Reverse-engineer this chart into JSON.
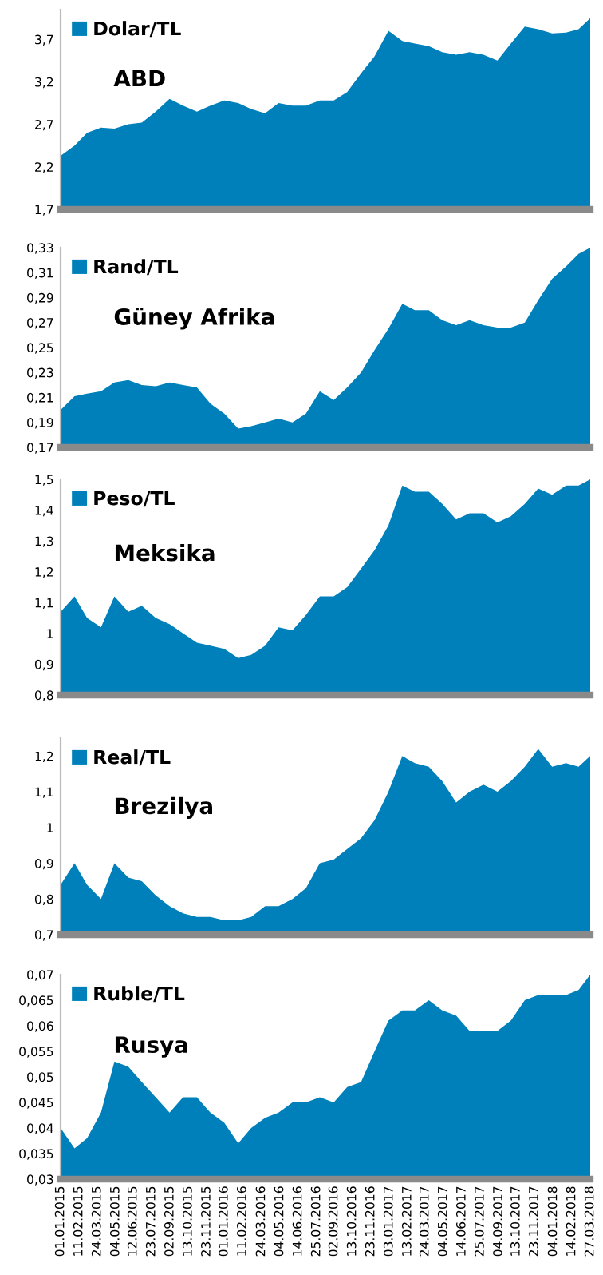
{
  "chart_data": [
    {
      "type": "area",
      "title": "ABD",
      "x": [
        "2015-01-01",
        "2015-02-01",
        "2015-03-01",
        "2015-04-01",
        "2015-05-01",
        "2015-06-01",
        "2015-07-01",
        "2015-08-01",
        "2015-09-01",
        "2015-10-01",
        "2015-11-01",
        "2015-12-01",
        "2016-01-01",
        "2016-02-01",
        "2016-03-01",
        "2016-04-01",
        "2016-05-01",
        "2016-06-01",
        "2016-07-01",
        "2016-08-01",
        "2016-09-01",
        "2016-10-01",
        "2016-11-01",
        "2016-12-01",
        "2017-01-01",
        "2017-02-01",
        "2017-03-01",
        "2017-04-01",
        "2017-05-01",
        "2017-06-01",
        "2017-07-01",
        "2017-08-01",
        "2017-09-01",
        "2017-10-01",
        "2017-11-01",
        "2017-12-01",
        "2018-01-01",
        "2018-02-01",
        "2018-03-01",
        "2018-03-27"
      ],
      "series": [
        {
          "name": "Dolar/TL",
          "color": "#0080bb",
          "values": [
            2.33,
            2.45,
            2.6,
            2.66,
            2.65,
            2.7,
            2.72,
            2.85,
            3.0,
            2.92,
            2.85,
            2.92,
            2.98,
            2.95,
            2.88,
            2.83,
            2.95,
            2.92,
            2.92,
            2.98,
            2.98,
            3.08,
            3.3,
            3.5,
            3.8,
            3.68,
            3.65,
            3.62,
            3.55,
            3.52,
            3.55,
            3.52,
            3.45,
            3.65,
            3.85,
            3.82,
            3.77,
            3.78,
            3.82,
            3.95
          ]
        }
      ],
      "xlim": [
        "2015-01-01",
        "2018-03-27"
      ],
      "ylim": [
        1.7,
        4.05
      ],
      "yticks": [
        {
          "value": 1.7,
          "label": "1,7"
        },
        {
          "value": 2.2,
          "label": "2,2"
        },
        {
          "value": 2.7,
          "label": "2,7"
        },
        {
          "value": 3.2,
          "label": "3,2"
        },
        {
          "value": 3.7,
          "label": "3,7"
        }
      ],
      "tick_labels": "y",
      "legend": "top left",
      "grid": false
    },
    {
      "type": "area",
      "title": "Güney Afrika",
      "x": [
        "2015-01-01",
        "2015-02-01",
        "2015-03-01",
        "2015-04-01",
        "2015-05-01",
        "2015-06-01",
        "2015-07-01",
        "2015-08-01",
        "2015-09-01",
        "2015-10-01",
        "2015-11-01",
        "2015-12-01",
        "2016-01-01",
        "2016-02-01",
        "2016-03-01",
        "2016-04-01",
        "2016-05-01",
        "2016-06-01",
        "2016-07-01",
        "2016-08-01",
        "2016-09-01",
        "2016-10-01",
        "2016-11-01",
        "2016-12-01",
        "2017-01-01",
        "2017-02-01",
        "2017-03-01",
        "2017-04-01",
        "2017-05-01",
        "2017-06-01",
        "2017-07-01",
        "2017-08-01",
        "2017-09-01",
        "2017-10-01",
        "2017-11-01",
        "2017-12-01",
        "2018-01-01",
        "2018-02-01",
        "2018-03-01",
        "2018-03-27"
      ],
      "series": [
        {
          "name": "Rand/TL",
          "color": "#0080bb",
          "values": [
            0.2,
            0.211,
            0.213,
            0.215,
            0.222,
            0.224,
            0.22,
            0.219,
            0.222,
            0.22,
            0.218,
            0.205,
            0.197,
            0.185,
            0.187,
            0.19,
            0.193,
            0.19,
            0.197,
            0.215,
            0.208,
            0.218,
            0.23,
            0.248,
            0.265,
            0.285,
            0.28,
            0.28,
            0.272,
            0.268,
            0.272,
            0.268,
            0.266,
            0.266,
            0.27,
            0.288,
            0.305,
            0.315,
            0.325,
            0.33
          ]
        }
      ],
      "xlim": [
        "2015-01-01",
        "2018-03-27"
      ],
      "ylim": [
        0.17,
        0.33
      ],
      "yticks": [
        {
          "value": 0.17,
          "label": "0,17"
        },
        {
          "value": 0.19,
          "label": "0,19"
        },
        {
          "value": 0.21,
          "label": "0,21"
        },
        {
          "value": 0.23,
          "label": "0,23"
        },
        {
          "value": 0.25,
          "label": "0,25"
        },
        {
          "value": 0.27,
          "label": "0,27"
        },
        {
          "value": 0.29,
          "label": "0,29"
        },
        {
          "value": 0.31,
          "label": "0,31"
        },
        {
          "value": 0.33,
          "label": "0,33"
        }
      ],
      "tick_labels": "y",
      "legend": "top left",
      "grid": false
    },
    {
      "type": "area",
      "title": "Meksika",
      "x": [
        "2015-01-01",
        "2015-02-01",
        "2015-03-01",
        "2015-04-01",
        "2015-05-01",
        "2015-06-01",
        "2015-07-01",
        "2015-08-01",
        "2015-09-01",
        "2015-10-01",
        "2015-11-01",
        "2015-12-01",
        "2016-01-01",
        "2016-02-01",
        "2016-03-01",
        "2016-04-01",
        "2016-05-01",
        "2016-06-01",
        "2016-07-01",
        "2016-08-01",
        "2016-09-01",
        "2016-10-01",
        "2016-11-01",
        "2016-12-01",
        "2017-01-01",
        "2017-02-01",
        "2017-03-01",
        "2017-04-01",
        "2017-05-01",
        "2017-06-01",
        "2017-07-01",
        "2017-08-01",
        "2017-09-01",
        "2017-10-01",
        "2017-11-01",
        "2017-12-01",
        "2018-01-01",
        "2018-02-01",
        "2018-03-01",
        "2018-03-27"
      ],
      "series": [
        {
          "name": "Peso/TL",
          "color": "#0080bb",
          "values": [
            1.07,
            1.12,
            1.05,
            1.02,
            1.12,
            1.07,
            1.09,
            1.05,
            1.03,
            1.0,
            0.97,
            0.96,
            0.95,
            0.92,
            0.93,
            0.96,
            1.02,
            1.01,
            1.06,
            1.12,
            1.12,
            1.15,
            1.21,
            1.27,
            1.35,
            1.48,
            1.46,
            1.46,
            1.42,
            1.37,
            1.39,
            1.39,
            1.36,
            1.38,
            1.42,
            1.47,
            1.45,
            1.48,
            1.48,
            1.5
          ]
        }
      ],
      "xlim": [
        "2015-01-01",
        "2018-03-27"
      ],
      "ylim": [
        0.8,
        1.5
      ],
      "yticks": [
        {
          "value": 0.8,
          "label": "0,8"
        },
        {
          "value": 0.9,
          "label": "0,9"
        },
        1,
        {
          "value": 1.1,
          "label": "1,1"
        },
        {
          "value": 1.2,
          "label": "1,2"
        },
        {
          "value": 1.3,
          "label": "1,3"
        },
        {
          "value": 1.4,
          "label": "1,4"
        },
        {
          "value": 1.5,
          "label": "1,5"
        }
      ],
      "tick_labels": "y",
      "legend": "top left",
      "grid": false
    },
    {
      "type": "area",
      "title": "Brezilya",
      "x": [
        "2015-01-01",
        "2015-02-01",
        "2015-03-01",
        "2015-04-01",
        "2015-05-01",
        "2015-06-01",
        "2015-07-01",
        "2015-08-01",
        "2015-09-01",
        "2015-10-01",
        "2015-11-01",
        "2015-12-01",
        "2016-01-01",
        "2016-02-01",
        "2016-03-01",
        "2016-04-01",
        "2016-05-01",
        "2016-06-01",
        "2016-07-01",
        "2016-08-01",
        "2016-09-01",
        "2016-10-01",
        "2016-11-01",
        "2016-12-01",
        "2017-01-01",
        "2017-02-01",
        "2017-03-01",
        "2017-04-01",
        "2017-05-01",
        "2017-06-01",
        "2017-07-01",
        "2017-08-01",
        "2017-09-01",
        "2017-10-01",
        "2017-11-01",
        "2017-12-01",
        "2018-01-01",
        "2018-02-01",
        "2018-03-01",
        "2018-03-27"
      ],
      "series": [
        {
          "name": "Real/TL",
          "color": "#0080bb",
          "values": [
            0.84,
            0.9,
            0.84,
            0.8,
            0.9,
            0.86,
            0.85,
            0.81,
            0.78,
            0.76,
            0.75,
            0.75,
            0.74,
            0.74,
            0.75,
            0.78,
            0.78,
            0.8,
            0.83,
            0.9,
            0.91,
            0.94,
            0.97,
            1.02,
            1.1,
            1.2,
            1.18,
            1.17,
            1.13,
            1.07,
            1.1,
            1.12,
            1.1,
            1.13,
            1.17,
            1.22,
            1.17,
            1.18,
            1.17,
            1.2
          ]
        }
      ],
      "xlim": [
        "2015-01-01",
        "2018-03-27"
      ],
      "ylim": [
        0.7,
        1.25
      ],
      "yticks": [
        {
          "value": 0.7,
          "label": "0,7"
        },
        {
          "value": 0.8,
          "label": "0,8"
        },
        {
          "value": 0.9,
          "label": "0,9"
        },
        1,
        {
          "value": 1.1,
          "label": "1,1"
        },
        {
          "value": 1.2,
          "label": "1,2"
        }
      ],
      "tick_labels": "y",
      "legend": "top left",
      "grid": false
    },
    {
      "type": "area",
      "title": "Rusya",
      "x": [
        "2015-01-01",
        "2015-02-01",
        "2015-03-01",
        "2015-04-01",
        "2015-05-01",
        "2015-06-01",
        "2015-07-01",
        "2015-08-01",
        "2015-09-01",
        "2015-10-01",
        "2015-11-01",
        "2015-12-01",
        "2016-01-01",
        "2016-02-01",
        "2016-03-01",
        "2016-04-01",
        "2016-05-01",
        "2016-06-01",
        "2016-07-01",
        "2016-08-01",
        "2016-09-01",
        "2016-10-01",
        "2016-11-01",
        "2016-12-01",
        "2017-01-01",
        "2017-02-01",
        "2017-03-01",
        "2017-04-01",
        "2017-05-01",
        "2017-06-01",
        "2017-07-01",
        "2017-08-01",
        "2017-09-01",
        "2017-10-01",
        "2017-11-01",
        "2017-12-01",
        "2018-01-01",
        "2018-02-01",
        "2018-03-01",
        "2018-03-27"
      ],
      "series": [
        {
          "name": "Ruble/TL",
          "color": "#0080bb",
          "values": [
            0.04,
            0.036,
            0.038,
            0.043,
            0.053,
            0.052,
            0.049,
            0.046,
            0.043,
            0.046,
            0.046,
            0.043,
            0.041,
            0.037,
            0.04,
            0.042,
            0.043,
            0.045,
            0.045,
            0.046,
            0.045,
            0.048,
            0.049,
            0.055,
            0.061,
            0.063,
            0.063,
            0.065,
            0.063,
            0.062,
            0.059,
            0.059,
            0.059,
            0.061,
            0.065,
            0.066,
            0.066,
            0.066,
            0.067,
            0.07
          ]
        }
      ],
      "xlim": [
        "2015-01-01",
        "2018-03-27"
      ],
      "ylim": [
        0.03,
        0.07
      ],
      "xticks": [
        {
          "value": "2015-01-01",
          "label": "01.01.2015"
        },
        {
          "value": "2015-02-11",
          "label": "11.02.2015"
        },
        {
          "value": "2015-03-24",
          "label": "24.03.2015"
        },
        {
          "value": "2015-05-04",
          "label": "04.05.2015"
        },
        {
          "value": "2015-06-12",
          "label": "12.06.2015"
        },
        {
          "value": "2015-07-23",
          "label": "23.07.2015"
        },
        {
          "value": "2015-09-02",
          "label": "02.09.2015"
        },
        {
          "value": "2015-10-13",
          "label": "13.10.2015"
        },
        {
          "value": "2015-11-23",
          "label": "23.11.2015"
        },
        {
          "value": "2016-01-01",
          "label": "01.01.2016"
        },
        {
          "value": "2016-02-11",
          "label": "11.02.2016"
        },
        {
          "value": "2016-03-24",
          "label": "24.03.2016"
        },
        {
          "value": "2016-05-04",
          "label": "04.05.2016"
        },
        {
          "value": "2016-06-14",
          "label": "14.06.2016"
        },
        {
          "value": "2016-07-25",
          "label": "25.07.2016"
        },
        {
          "value": "2016-09-02",
          "label": "02.09.2016"
        },
        {
          "value": "2016-10-13",
          "label": "13.10.2016"
        },
        {
          "value": "2016-11-23",
          "label": "23.11.2016"
        },
        {
          "value": "2017-01-03",
          "label": "03.01.2017"
        },
        {
          "value": "2017-02-13",
          "label": "13.02.2017"
        },
        {
          "value": "2017-03-24",
          "label": "24.03.2017"
        },
        {
          "value": "2017-05-04",
          "label": "04.05.2017"
        },
        {
          "value": "2017-06-14",
          "label": "14.06.2017"
        },
        {
          "value": "2017-07-25",
          "label": "25.07.2017"
        },
        {
          "value": "2017-09-04",
          "label": "04.09.2017"
        },
        {
          "value": "2017-10-13",
          "label": "13.10.2017"
        },
        {
          "value": "2017-11-23",
          "label": "23.11.2017"
        },
        {
          "value": "2018-01-04",
          "label": "04.01.2018"
        },
        {
          "value": "2018-02-14",
          "label": "14.02.2018"
        },
        {
          "value": "2018-03-27",
          "label": "27.03.2018"
        }
      ],
      "yticks": [
        {
          "value": 0.03,
          "label": "0,03"
        },
        {
          "value": 0.035,
          "label": "0,035"
        },
        {
          "value": 0.04,
          "label": "0,04"
        },
        {
          "value": 0.045,
          "label": "0,045"
        },
        {
          "value": 0.05,
          "label": "0,05"
        },
        {
          "value": 0.055,
          "label": "0,055"
        },
        {
          "value": 0.06,
          "label": "0,06"
        },
        {
          "value": 0.065,
          "label": "0,065"
        },
        {
          "value": 0.07,
          "label": "0,07"
        }
      ],
      "legend": "top left",
      "grid": false
    }
  ]
}
